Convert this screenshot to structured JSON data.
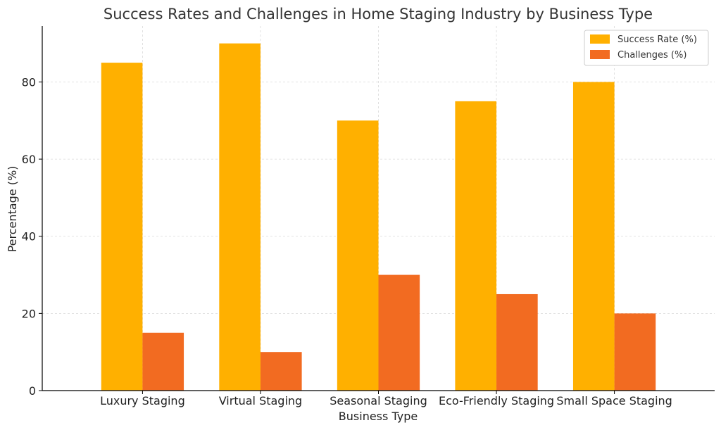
{
  "chart_data": {
    "type": "bar",
    "title": "Success Rates and Challenges in Home Staging Industry by Business Type",
    "xlabel": "Business Type",
    "ylabel": "Percentage (%)",
    "categories": [
      "Luxury Staging",
      "Virtual Staging",
      "Seasonal Staging",
      "Eco-Friendly Staging",
      "Small Space Staging"
    ],
    "series": [
      {
        "name": "Success Rate (%)",
        "values": [
          85,
          90,
          70,
          75,
          80
        ],
        "color": "#FFB000"
      },
      {
        "name": "Challenges (%)",
        "values": [
          15,
          10,
          30,
          25,
          20
        ],
        "color": "#F26B21"
      }
    ],
    "yticks": [
      0,
      20,
      40,
      60,
      80
    ],
    "ylim": [
      0,
      94.5
    ],
    "grid": true,
    "legend_position": "top-right"
  }
}
